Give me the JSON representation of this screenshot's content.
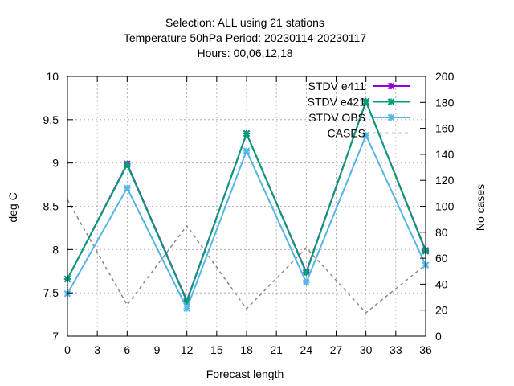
{
  "chart_data": {
    "type": "line",
    "title_lines": [
      "Selection: ALL using     21 stations",
      "Temperature 50hPa   Period: 20230114-20230117",
      "Hours:  00,06,12,18"
    ],
    "xlabel": "Forecast length",
    "ylabel": "deg C",
    "y2label": "No cases",
    "xlim": [
      0,
      36
    ],
    "ylim": [
      7,
      10
    ],
    "y2lim": [
      0,
      200
    ],
    "xticks": [
      "0",
      "3",
      "6",
      "9",
      "12",
      "15",
      "18",
      "21",
      "24",
      "27",
      "30",
      "33",
      "36"
    ],
    "yticks": [
      "7",
      "7.5",
      "8",
      "8.5",
      "9",
      "9.5",
      "10"
    ],
    "y2ticks": [
      "0",
      "20",
      "40",
      "60",
      "80",
      "100",
      "120",
      "140",
      "160",
      "180",
      "200"
    ],
    "grid": true,
    "legend_position": "top-right",
    "x": [
      0,
      6,
      12,
      18,
      24,
      30,
      36
    ],
    "series": [
      {
        "name": "STDV e411",
        "axis": "y1",
        "color": "#9400d3",
        "style": "solid",
        "marker": "x",
        "values": [
          7.66,
          8.99,
          7.41,
          9.34,
          7.74,
          9.71,
          7.99
        ]
      },
      {
        "name": "STDV e421",
        "axis": "y1",
        "color": "#009e73",
        "style": "solid",
        "marker": "x",
        "values": [
          7.66,
          8.98,
          7.4,
          9.34,
          7.73,
          9.71,
          7.98
        ]
      },
      {
        "name": "STDV OBS",
        "axis": "y1",
        "color": "#56b4e9",
        "style": "solid",
        "marker": "x",
        "values": [
          7.49,
          8.71,
          7.32,
          9.14,
          7.62,
          9.32,
          7.82
        ]
      },
      {
        "name": "CASES",
        "axis": "y2",
        "color": "#888888",
        "style": "dashed",
        "marker": "none",
        "values": [
          105,
          24,
          85,
          21,
          68,
          18,
          55
        ]
      }
    ]
  }
}
